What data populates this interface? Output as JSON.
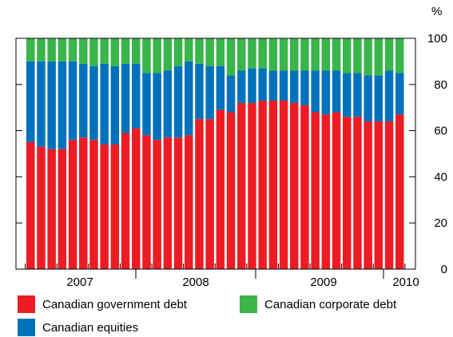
{
  "chart_data": {
    "type": "bar",
    "stacked": true,
    "title": "",
    "unit_label": "%",
    "ylim": [
      0,
      100
    ],
    "y_ticks": [
      0,
      20,
      40,
      60,
      80,
      100
    ],
    "x_tick_labels": [
      "2007",
      "2008",
      "2009",
      "2010"
    ],
    "colors": {
      "government": "#ed1c24",
      "equities": "#0072bc",
      "corporate": "#39b54a"
    },
    "series": [
      {
        "name": "Canadian government debt",
        "values": [
          55,
          53,
          52,
          52,
          56,
          57,
          56,
          54,
          54,
          59,
          61,
          58,
          56,
          57,
          57,
          58,
          65,
          65,
          69,
          68,
          72,
          72,
          73,
          73,
          73,
          72,
          71,
          68,
          67,
          68,
          66,
          66,
          64,
          64,
          64,
          67
        ]
      },
      {
        "name": "Canadian equities",
        "values": [
          35,
          37,
          38,
          38,
          34,
          32,
          32,
          35,
          34,
          30,
          28,
          27,
          29,
          29,
          31,
          32,
          24,
          23,
          19,
          16,
          14,
          15,
          14,
          13,
          13,
          14,
          15,
          18,
          19,
          18,
          19,
          19,
          20,
          20,
          22,
          18
        ]
      },
      {
        "name": "Canadian corporate debt",
        "values": [
          10,
          10,
          10,
          10,
          10,
          11,
          12,
          11,
          12,
          11,
          11,
          15,
          15,
          14,
          12,
          10,
          11,
          12,
          12,
          16,
          14,
          13,
          13,
          14,
          14,
          14,
          14,
          14,
          14,
          14,
          15,
          15,
          16,
          16,
          14,
          15
        ]
      }
    ],
    "legend": [
      {
        "label": "Canadian government debt",
        "series": "government"
      },
      {
        "label": "Canadian corporate debt",
        "series": "corporate"
      },
      {
        "label": "Canadian equities",
        "series": "equities"
      }
    ],
    "grid": false,
    "legend_position": "bottom"
  }
}
